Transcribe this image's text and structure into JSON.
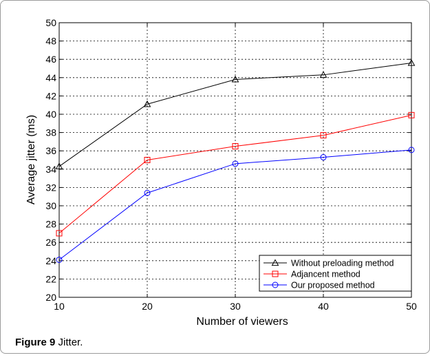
{
  "caption": {
    "label": "Figure 9",
    "text": "Jitter."
  },
  "chart_data": {
    "type": "line",
    "x": [
      10,
      20,
      30,
      40,
      50
    ],
    "xlabel": "Number of viewers",
    "ylabel": "Average jitter (ms)",
    "xlim": [
      10,
      50
    ],
    "ylim": [
      20,
      50
    ],
    "xticks": [
      10,
      20,
      30,
      40,
      50
    ],
    "yticks": [
      20,
      22,
      24,
      26,
      28,
      30,
      32,
      34,
      36,
      38,
      40,
      42,
      44,
      46,
      48,
      50
    ],
    "grid": true,
    "legend_position": "bottom-right",
    "series": [
      {
        "name": "Without preloading method",
        "color": "#000000",
        "marker": "triangle",
        "values": [
          34.3,
          41.1,
          43.8,
          44.3,
          45.6
        ]
      },
      {
        "name": "Adjancent method",
        "color": "#ff0000",
        "marker": "square",
        "values": [
          27.0,
          35.0,
          36.5,
          37.7,
          39.9
        ]
      },
      {
        "name": "Our proposed method",
        "color": "#0000ff",
        "marker": "circle",
        "values": [
          24.1,
          31.4,
          34.6,
          35.3,
          36.1
        ]
      }
    ]
  }
}
